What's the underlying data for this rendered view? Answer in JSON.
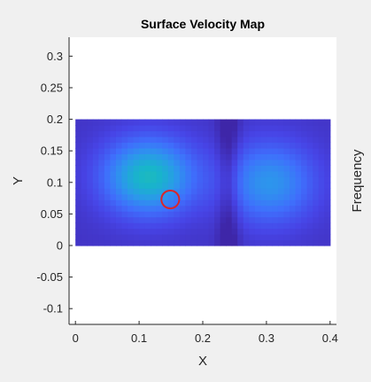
{
  "chart_data": {
    "type": "heatmap",
    "title": "Surface Velocity Map",
    "xlabel": "X",
    "ylabel": "Y",
    "colorbar_label": "Frequency",
    "xlim": [
      -0.01,
      0.41
    ],
    "ylim": [
      -0.125,
      0.33
    ],
    "x_ticks": [
      0,
      0.1,
      0.2,
      0.3,
      0.4
    ],
    "x_tick_labels": [
      "0",
      "0.1",
      "0.2",
      "0.3",
      "0.4"
    ],
    "y_ticks": [
      0.3,
      0.25,
      0.2,
      0.15,
      0.1,
      0.05,
      0,
      -0.05,
      -0.1
    ],
    "y_tick_labels": [
      "0.3",
      "0.25",
      "0.2",
      "0.15",
      "0.1",
      "0.05",
      "0",
      "-0.05",
      "-0.1"
    ],
    "grid": false,
    "colormap": "parula",
    "colormap_stops": [
      "#3e26a8",
      "#4744e6",
      "#3f6ffc",
      "#2c97ec",
      "#17b6c9",
      "#3fc58f",
      "#8dc83f",
      "#dcbb2c",
      "#f9f918"
    ],
    "field": {
      "x_range": [
        0,
        0.4
      ],
      "y_range": [
        0,
        0.2
      ],
      "background_level": 0.06,
      "blobs": [
        {
          "x": 0.115,
          "y": 0.11,
          "sx": 0.05,
          "sy": 0.042,
          "amp": 0.46
        },
        {
          "x": 0.305,
          "y": 0.1,
          "sx": 0.05,
          "sy": 0.045,
          "amp": 0.31
        }
      ],
      "valley_x": 0.24,
      "valley_width": 0.012,
      "valley_depth": 0.12
    },
    "marker": {
      "x": 0.149,
      "y": 0.073,
      "radius": 0.014,
      "color": "#d9262b",
      "shape": "circle"
    }
  }
}
